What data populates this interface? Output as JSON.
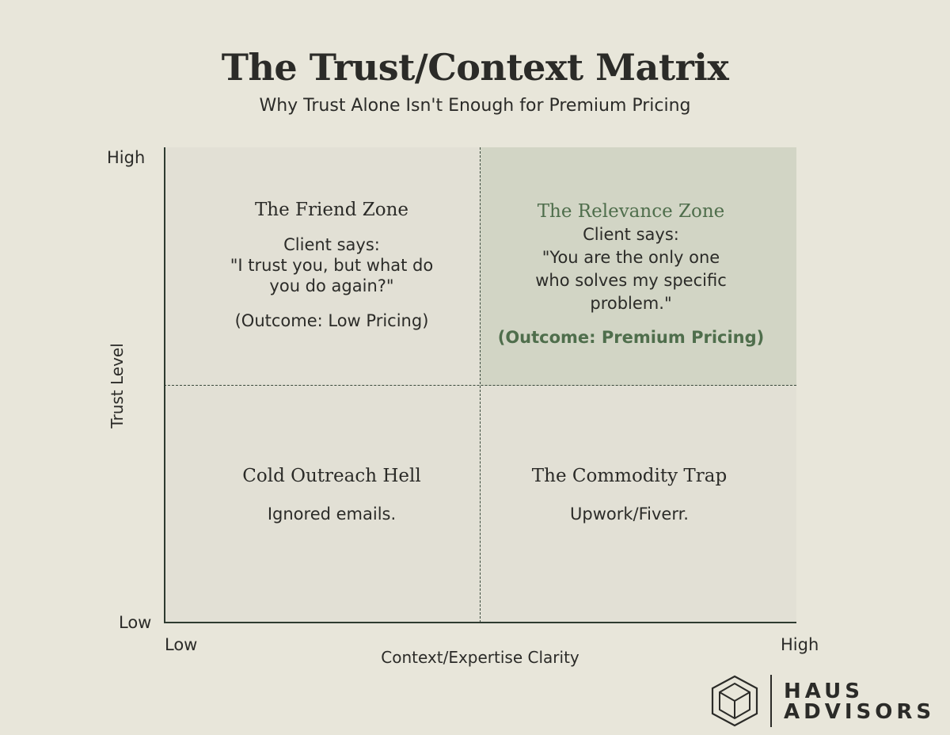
{
  "title": "The Trust/Context Matrix",
  "subtitle": "Why Trust Alone Isn't Enough for Premium Pricing",
  "axes": {
    "y_label": "Trust Level",
    "y_high": "High",
    "y_low": "Low",
    "x_label": "Context/Expertise Clarity",
    "x_low": "Low",
    "x_high": "High"
  },
  "quadrants": {
    "top_left": {
      "heading": "The Friend Zone",
      "says": "Client says:",
      "quote_1": "\"I trust you, but what do",
      "quote_2": "you do again?\"",
      "outcome": "(Outcome: Low Pricing)"
    },
    "top_right": {
      "heading": "The Relevance Zone",
      "says": "Client says:",
      "quote_1": "\"You are the only one",
      "quote_2": "who solves my specific",
      "quote_3": "problem.\"",
      "outcome": "(Outcome: Premium Pricing)"
    },
    "bottom_left": {
      "heading": "Cold Outreach Hell",
      "body": "Ignored emails."
    },
    "bottom_right": {
      "heading": "The Commodity Trap",
      "body": "Upwork/Fiverr."
    }
  },
  "logo": {
    "line_1": "HAUS",
    "line_2": "ADVISORS",
    "icon": "hexagon-house-icon"
  },
  "colors": {
    "background": "#e8e6da",
    "plot": "#e2e0d5",
    "highlight": "#d2d5c5",
    "accent_green": "#4f6e4c",
    "axis": "#2e3b30"
  }
}
